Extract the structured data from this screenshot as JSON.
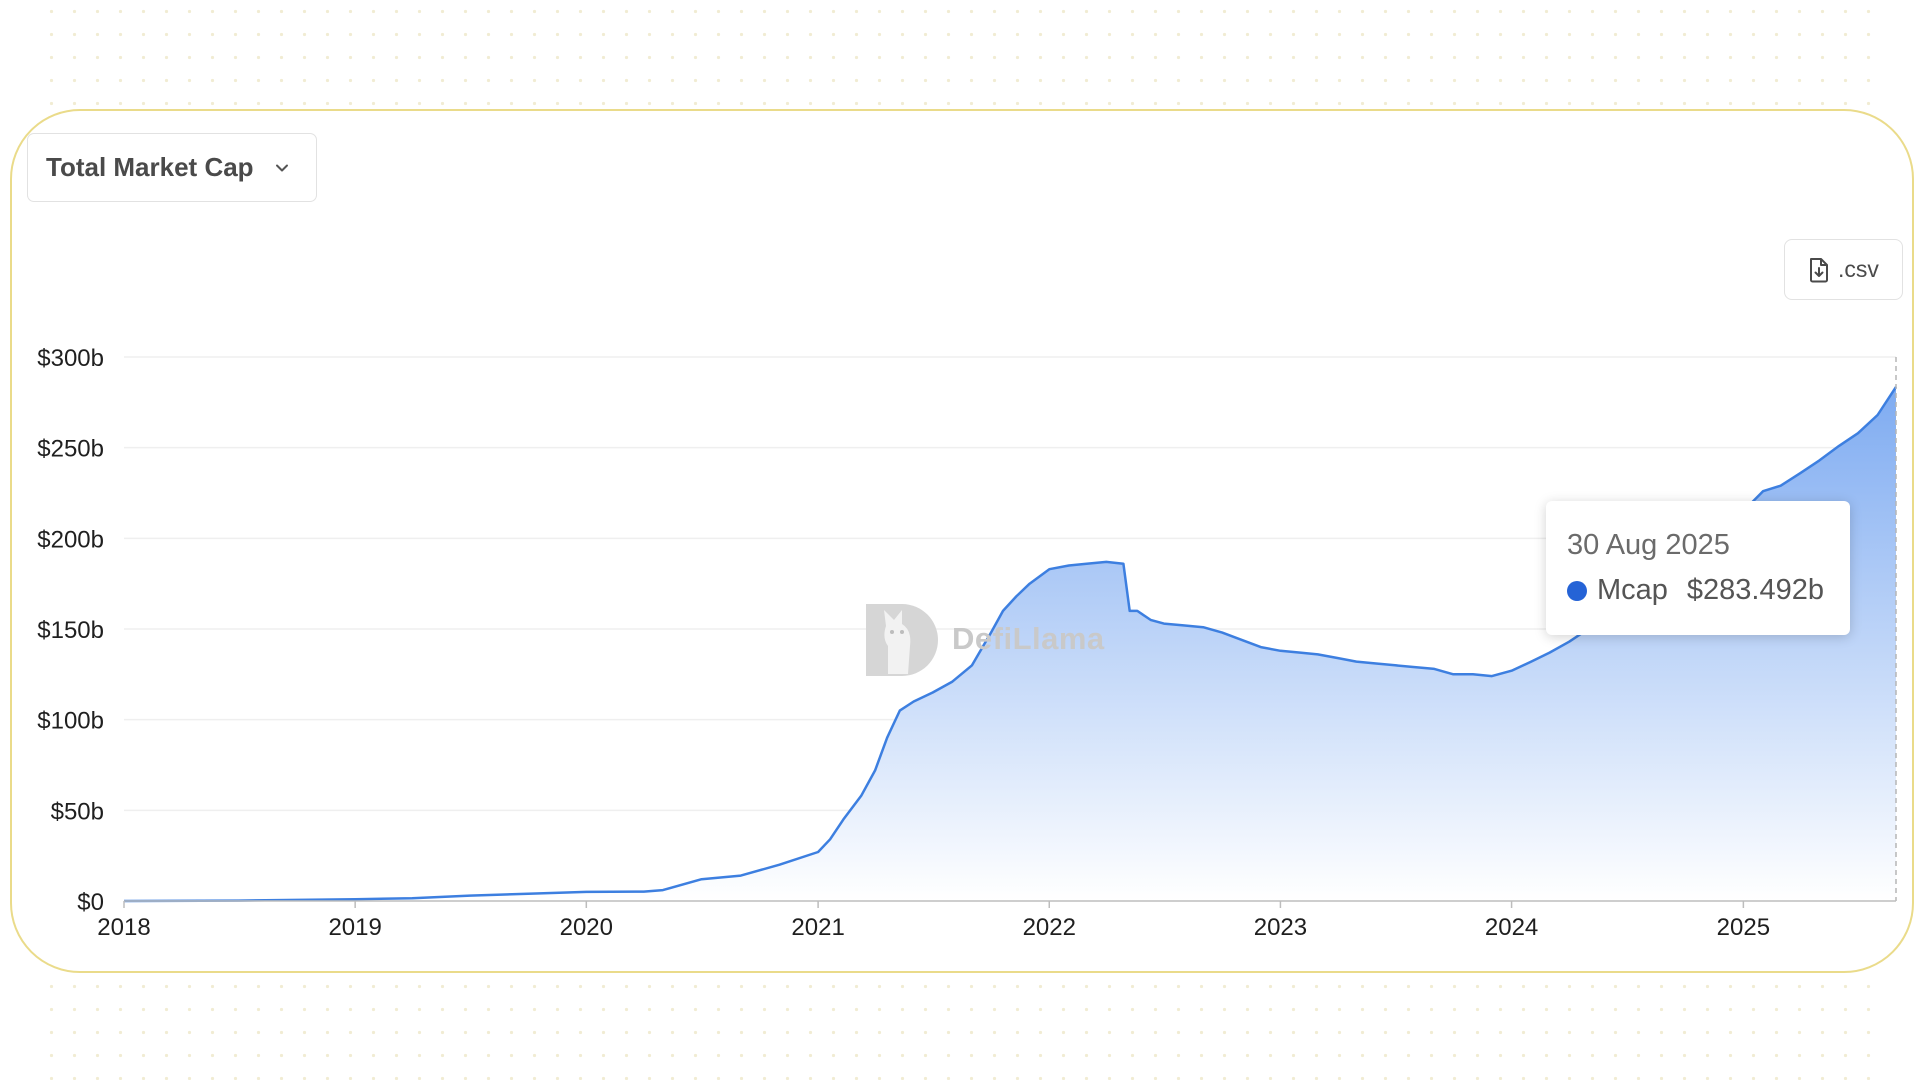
{
  "metric_selector": {
    "label": "Total Market Cap",
    "icon": "chevron-down-icon"
  },
  "download": {
    "label": ".csv",
    "icon": "file-download-icon"
  },
  "watermark": {
    "text": "DefiLlama"
  },
  "tooltip": {
    "date": "30 Aug 2025",
    "series": "Mcap",
    "value": "$283.492b"
  },
  "colors": {
    "line": "#3d7fe0",
    "fill_top": "#7eabf1",
    "fill_bottom": "#ffffff",
    "tooltip_dot": "#2563d6",
    "card_border": "#eadb8a"
  },
  "chart_data": {
    "type": "area",
    "title": "",
    "xlabel": "",
    "ylabel": "",
    "grid": true,
    "x_ticks": [
      "2018",
      "2019",
      "2020",
      "2021",
      "2022",
      "2023",
      "2024",
      "2025"
    ],
    "y_ticks": [
      "$0",
      "$50b",
      "$100b",
      "$150b",
      "$200b",
      "$250b",
      "$300b"
    ],
    "ylim": [
      0,
      300
    ],
    "xlim": [
      "2018-01-01",
      "2025-08-30"
    ],
    "series": [
      {
        "name": "Mcap",
        "x": [
          "2018-01-01",
          "2018-07-01",
          "2019-01-01",
          "2019-04-01",
          "2019-07-01",
          "2019-10-01",
          "2020-01-01",
          "2020-04-01",
          "2020-05-01",
          "2020-07-01",
          "2020-09-01",
          "2020-11-01",
          "2021-01-01",
          "2021-01-20",
          "2021-02-10",
          "2021-03-10",
          "2021-04-01",
          "2021-04-20",
          "2021-05-10",
          "2021-06-01",
          "2021-07-01",
          "2021-08-01",
          "2021-09-01",
          "2021-10-01",
          "2021-10-20",
          "2021-11-10",
          "2021-12-01",
          "2022-01-01",
          "2022-02-01",
          "2022-03-01",
          "2022-04-01",
          "2022-04-28",
          "2022-05-08",
          "2022-05-20",
          "2022-06-10",
          "2022-07-01",
          "2022-08-01",
          "2022-09-01",
          "2022-10-01",
          "2022-11-01",
          "2022-12-01",
          "2023-01-01",
          "2023-02-01",
          "2023-03-01",
          "2023-04-01",
          "2023-05-01",
          "2023-06-01",
          "2023-07-01",
          "2023-08-01",
          "2023-09-01",
          "2023-10-01",
          "2023-11-01",
          "2023-12-01",
          "2024-01-01",
          "2024-02-01",
          "2024-03-01",
          "2024-04-01",
          "2024-05-01",
          "2024-06-01",
          "2024-07-01",
          "2024-08-01",
          "2024-09-01",
          "2024-10-01",
          "2024-11-01",
          "2024-12-01",
          "2025-01-01",
          "2025-02-01",
          "2025-03-01",
          "2025-04-01",
          "2025-05-01",
          "2025-06-01",
          "2025-07-01",
          "2025-08-01",
          "2025-08-30"
        ],
        "y": [
          0,
          0.2,
          1,
          1.5,
          3,
          4,
          5,
          5.2,
          6,
          12,
          14,
          20,
          27,
          34,
          45,
          58,
          72,
          90,
          105,
          110,
          115,
          121,
          130,
          148,
          160,
          168,
          175,
          183,
          185,
          186,
          187,
          186,
          160,
          160,
          155,
          153,
          152,
          151,
          148,
          144,
          140,
          138,
          137,
          136,
          134,
          132,
          131,
          130,
          129,
          128,
          125,
          125,
          124,
          127,
          132,
          137,
          143,
          150,
          157,
          164,
          171,
          178,
          185,
          193,
          205,
          215,
          226,
          229,
          236,
          243,
          251,
          258,
          268,
          283.492
        ]
      }
    ]
  }
}
